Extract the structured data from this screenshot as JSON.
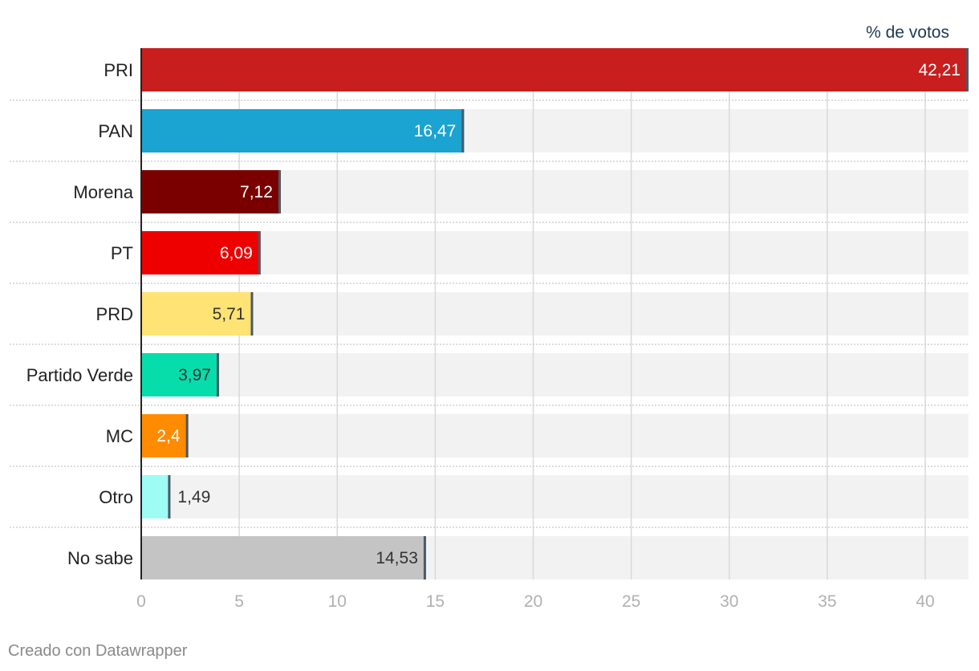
{
  "chart_data": {
    "type": "bar",
    "orientation": "horizontal",
    "categories": [
      "PRI",
      "PAN",
      "Morena",
      "PT",
      "PRD",
      "Partido Verde",
      "MC",
      "Otro",
      "No sabe"
    ],
    "values": [
      42.21,
      16.47,
      7.12,
      6.09,
      5.71,
      3.97,
      2.4,
      1.49,
      14.53
    ],
    "value_labels": [
      "42,21",
      "16,47",
      "7,12",
      "6,09",
      "5,71",
      "3,97",
      "2,4",
      "1,49",
      "14,53"
    ],
    "colors": [
      "#c91e1e",
      "#1ba3d1",
      "#7a0000",
      "#ee0000",
      "#ffe374",
      "#07ddab",
      "#ff8c00",
      "#9efcf5",
      "#c4c4c4"
    ],
    "value_label_colors": [
      "#ffffff",
      "#ffffff",
      "#ffffff",
      "#ffffff",
      "#333333",
      "#333333",
      "#ffffff",
      "#333333",
      "#333333"
    ],
    "unit_label": "% de votos",
    "xlim": [
      0,
      42.21
    ],
    "xticks": [
      0,
      5,
      10,
      15,
      20,
      25,
      30,
      35,
      40
    ],
    "grid": true,
    "track_color": "#f2f2f2",
    "gridline_color": "#d9d9d9"
  },
  "footer": {
    "credit": "Creado con Datawrapper"
  }
}
